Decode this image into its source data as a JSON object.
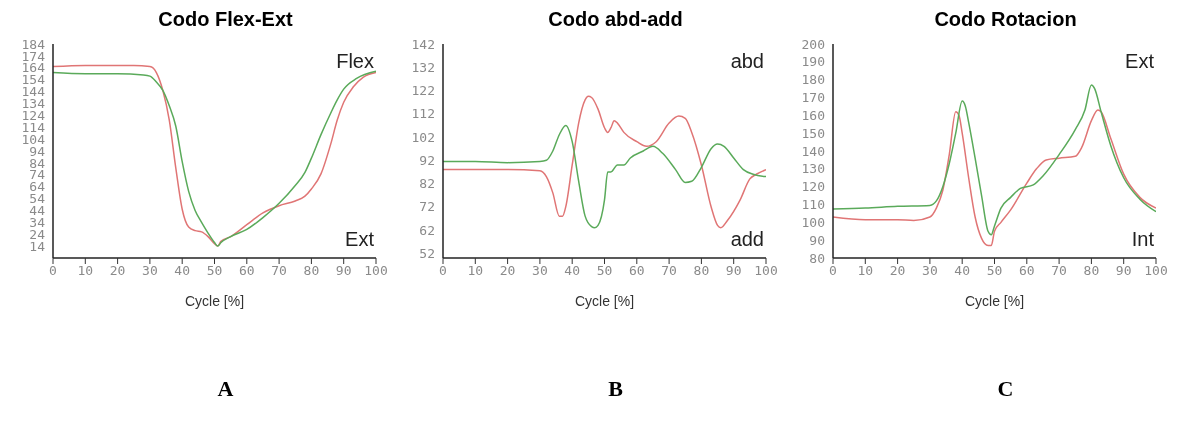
{
  "chart_data": [
    {
      "type": "line",
      "title": "Codo Flex-Ext",
      "xlabel": "Cycle [%]",
      "xlim": [
        0,
        100
      ],
      "xticks": [
        0,
        10,
        20,
        30,
        40,
        50,
        60,
        70,
        80,
        90,
        100
      ],
      "ylim": [
        4,
        184
      ],
      "yticks": [
        14,
        24,
        34,
        44,
        54,
        64,
        74,
        84,
        94,
        104,
        114,
        124,
        134,
        144,
        154,
        164,
        174,
        184
      ],
      "annotations": [
        "Flex",
        "Ext",
        "A"
      ],
      "series": [
        {
          "color": "#e07575",
          "x": [
            0,
            10,
            20,
            25,
            30,
            32,
            34,
            36,
            38,
            40,
            42,
            44,
            46,
            48,
            50,
            51,
            52,
            55,
            60,
            65,
            70,
            75,
            78,
            80,
            83,
            86,
            88,
            90,
            93,
            96,
            100
          ],
          "values": [
            165,
            166,
            166,
            166,
            165,
            160,
            145,
            120,
            80,
            45,
            30,
            27,
            26,
            22,
            16,
            14,
            18,
            22,
            32,
            42,
            48,
            52,
            56,
            62,
            75,
            100,
            120,
            135,
            148,
            156,
            160
          ]
        },
        {
          "color": "#5aaa5a",
          "x": [
            0,
            10,
            20,
            28,
            30,
            32,
            34,
            36,
            38,
            40,
            42,
            44,
            46,
            48,
            50,
            51,
            52,
            55,
            60,
            65,
            70,
            75,
            78,
            80,
            83,
            86,
            88,
            90,
            94,
            100
          ],
          "values": [
            160,
            159,
            159,
            158,
            157,
            152,
            145,
            132,
            115,
            85,
            60,
            44,
            34,
            25,
            17,
            14,
            17,
            22,
            28,
            38,
            50,
            65,
            76,
            88,
            108,
            126,
            137,
            146,
            155,
            161
          ]
        }
      ]
    },
    {
      "type": "line",
      "title": "Codo abd-add",
      "xlabel": "Cycle [%]",
      "xlim": [
        0,
        100
      ],
      "xticks": [
        0,
        10,
        20,
        30,
        40,
        50,
        60,
        70,
        80,
        90,
        100
      ],
      "ylim": [
        50,
        142
      ],
      "yticks": [
        52,
        62,
        72,
        82,
        92,
        102,
        112,
        122,
        132,
        142
      ],
      "annotations": [
        "abd",
        "add",
        "B"
      ],
      "series": [
        {
          "color": "#e07575",
          "x": [
            0,
            10,
            20,
            30,
            32,
            34,
            36,
            37,
            38,
            40,
            42,
            44,
            45,
            46,
            48,
            50,
            51,
            52,
            53,
            54,
            56,
            60,
            63,
            66,
            70,
            73,
            75,
            77,
            80,
            83,
            85,
            86,
            88,
            92,
            95,
            97,
            100
          ],
          "values": [
            88,
            88,
            88,
            87.5,
            85,
            78,
            68,
            68,
            72,
            90,
            108,
            118,
            119.5,
            119,
            114,
            106,
            104,
            106,
            109,
            108,
            104,
            100,
            98,
            100,
            108,
            111,
            110,
            104,
            90,
            72,
            64,
            63,
            66,
            75,
            84,
            86,
            88
          ]
        },
        {
          "color": "#5aaa5a",
          "x": [
            0,
            10,
            20,
            30,
            32,
            34,
            36,
            38,
            40,
            42,
            44,
            46,
            47,
            48,
            50,
            51,
            52,
            54,
            56,
            58,
            62,
            65,
            68,
            72,
            75,
            77,
            80,
            83,
            85,
            87,
            90,
            93,
            96,
            100
          ],
          "values": [
            91.5,
            91.5,
            91,
            91.5,
            92,
            96,
            103,
            107,
            100,
            83,
            68,
            63.5,
            63,
            64,
            75,
            87,
            87,
            90,
            90,
            93,
            96,
            98,
            95,
            88,
            82.5,
            83,
            89,
            97,
            99,
            98,
            93,
            88,
            86,
            85
          ]
        }
      ]
    },
    {
      "type": "line",
      "title": "Codo Rotacion",
      "xlabel": "Cycle [%]",
      "xlim": [
        0,
        100
      ],
      "xticks": [
        0,
        10,
        20,
        30,
        40,
        50,
        60,
        70,
        80,
        90,
        100
      ],
      "ylim": [
        80,
        200
      ],
      "yticks": [
        80,
        90,
        100,
        110,
        120,
        130,
        140,
        150,
        160,
        170,
        180,
        190,
        200
      ],
      "annotations": [
        "Ext",
        "Int",
        "C"
      ],
      "series": [
        {
          "color": "#e07575",
          "x": [
            0,
            10,
            20,
            25,
            30,
            32,
            34,
            36,
            38,
            39,
            40,
            42,
            44,
            46,
            48,
            49,
            50,
            52,
            55,
            60,
            63,
            66,
            70,
            75,
            77,
            80,
            82,
            83,
            86,
            90,
            95,
            100
          ],
          "values": [
            103,
            101.5,
            101.5,
            101,
            103,
            108,
            118,
            138,
            162,
            160,
            150,
            125,
            103,
            91,
            87,
            87,
            95,
            100,
            107,
            122,
            130,
            135,
            136,
            137,
            142,
            157,
            163,
            162,
            147,
            127,
            114,
            108
          ]
        },
        {
          "color": "#5aaa5a",
          "x": [
            0,
            10,
            20,
            30,
            32,
            34,
            36,
            38,
            40,
            41,
            42,
            44,
            46,
            48,
            49,
            50,
            52,
            55,
            58,
            62,
            65,
            70,
            75,
            78,
            80,
            81,
            83,
            86,
            90,
            95,
            100
          ],
          "values": [
            107.5,
            108,
            109,
            109.5,
            112,
            120,
            133,
            150,
            168,
            165,
            156,
            136,
            115,
            95,
            93,
            98,
            108,
            114,
            119,
            121,
            126,
            138,
            152,
            163,
            177,
            175,
            162,
            143,
            125,
            113,
            106
          ]
        }
      ]
    }
  ]
}
